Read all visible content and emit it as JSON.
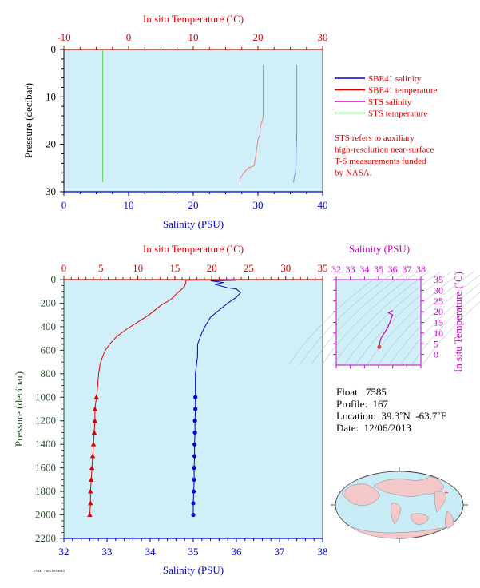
{
  "float_info": {
    "float": "Float:  7585",
    "profile": "Profile:  167",
    "location": "Location:  39.3˚N  -63.7˚E",
    "date": "Date:  12/06/2013"
  },
  "footer_code": "F5847 7585 09/06/14",
  "colors": {
    "salinity": "#0000cc",
    "temperature": "#dd0000",
    "sts_salinity": "#cc00cc",
    "sts_temperature": "#33cc33",
    "plot_bg": "#d0eff8",
    "depth_axis": "#2d4a2d"
  },
  "chart_data": [
    {
      "id": "top",
      "type": "line",
      "title": "",
      "top_axis_label": "In situ Temperature (˚C)",
      "top_axis_range": [
        -10,
        30
      ],
      "top_ticks": [
        -10,
        0,
        10,
        20,
        30
      ],
      "bottom_axis_label": "Salinity (PSU)",
      "bottom_axis_range": [
        0,
        40
      ],
      "bottom_ticks": [
        0,
        10,
        20,
        30,
        40
      ],
      "ylabel": "Pressure (decibar)",
      "ylim": [
        0,
        30
      ],
      "y_ticks": [
        0,
        10,
        20,
        30
      ],
      "legend": [
        {
          "name": "SBE41 salinity",
          "color": "#0000cc"
        },
        {
          "name": "SBE41 temperature",
          "color": "#dd0000"
        },
        {
          "name": "STS salinity",
          "color": "#cc00cc"
        },
        {
          "name": "STS temperature",
          "color": "#33cc33"
        }
      ],
      "note": [
        "STS refers to auxiliary",
        "high-resolution near-surface",
        "T-S measurements funded",
        "by NASA."
      ],
      "series": [
        {
          "name": "SBE41 salinity",
          "axis": "bottom",
          "color": "#7090e0",
          "points": [
            [
              36.0,
              3.2
            ],
            [
              36.0,
              12
            ],
            [
              36.0,
              18
            ],
            [
              35.9,
              22
            ],
            [
              35.9,
              24
            ],
            [
              35.8,
              26
            ],
            [
              35.6,
              27
            ],
            [
              35.5,
              28
            ]
          ]
        },
        {
          "name": "SBE41 temperature",
          "axis": "top",
          "color": "#f08080",
          "points": [
            [
              20.8,
              3.2
            ],
            [
              20.8,
              9
            ],
            [
              20.8,
              14
            ],
            [
              20.7,
              15
            ],
            [
              20.4,
              16
            ],
            [
              20.3,
              18
            ],
            [
              20.0,
              19
            ],
            [
              19.8,
              21
            ],
            [
              19.6,
              23
            ],
            [
              19.4,
              24.5
            ],
            [
              18.5,
              25
            ],
            [
              17.8,
              26
            ],
            [
              17.3,
              27
            ],
            [
              17.2,
              28
            ]
          ]
        },
        {
          "name": "STS temperature",
          "axis": "top",
          "color": "#66cc66",
          "points": [
            [
              -4,
              0
            ],
            [
              -4,
              28
            ]
          ]
        }
      ]
    },
    {
      "id": "profile",
      "type": "line",
      "title": "",
      "top_axis_label": "In situ Temperature (˚C)",
      "top_axis_range": [
        0,
        35
      ],
      "top_ticks": [
        0,
        5,
        10,
        15,
        20,
        25,
        30,
        35
      ],
      "bottom_axis_label": "Salinity (PSU)",
      "bottom_axis_range": [
        32,
        38
      ],
      "bottom_ticks": [
        32,
        33,
        34,
        35,
        36,
        37,
        38
      ],
      "ylabel": "Pressure (decibar)",
      "ylim": [
        0,
        2200
      ],
      "y_ticks": [
        0,
        200,
        400,
        600,
        800,
        1000,
        1200,
        1400,
        1600,
        1800,
        2000,
        2200
      ],
      "series": [
        {
          "name": "SBE41 temperature",
          "axis": "top",
          "color": "#dd0000",
          "points": [
            [
              22.5,
              0
            ],
            [
              16.5,
              5
            ],
            [
              16.5,
              25
            ],
            [
              16.3,
              60
            ],
            [
              15.8,
              90
            ],
            [
              15.2,
              120
            ],
            [
              14.8,
              150
            ],
            [
              14.2,
              180
            ],
            [
              13.3,
              210
            ],
            [
              12.5,
              250
            ],
            [
              11.5,
              300
            ],
            [
              10.0,
              360
            ],
            [
              8.5,
              420
            ],
            [
              7.2,
              480
            ],
            [
              6.3,
              540
            ],
            [
              5.6,
              600
            ],
            [
              5.2,
              660
            ],
            [
              4.9,
              720
            ],
            [
              4.7,
              800
            ],
            [
              4.6,
              880
            ],
            [
              4.5,
              950
            ],
            [
              4.4,
              1000
            ]
          ],
          "discrete": [
            [
              4.4,
              1000
            ],
            [
              4.2,
              1100
            ],
            [
              4.2,
              1200
            ],
            [
              4.1,
              1300
            ],
            [
              4.0,
              1400
            ],
            [
              3.9,
              1500
            ],
            [
              3.8,
              1600
            ],
            [
              3.7,
              1700
            ],
            [
              3.6,
              1800
            ],
            [
              3.6,
              1900
            ],
            [
              3.5,
              2000
            ]
          ]
        },
        {
          "name": "SBE41 salinity",
          "axis": "bottom",
          "color": "#0000cc",
          "points": [
            [
              36.0,
              5
            ],
            [
              35.4,
              10
            ],
            [
              35.7,
              25
            ],
            [
              35.5,
              40
            ],
            [
              35.8,
              70
            ],
            [
              36.0,
              80
            ],
            [
              36.1,
              110
            ],
            [
              36.0,
              150
            ],
            [
              35.8,
              200
            ],
            [
              35.6,
              260
            ],
            [
              35.4,
              320
            ],
            [
              35.3,
              380
            ],
            [
              35.2,
              450
            ],
            [
              35.1,
              550
            ],
            [
              35.1,
              650
            ],
            [
              35.05,
              800
            ],
            [
              35.05,
              900
            ],
            [
              35.05,
              1000
            ]
          ],
          "discrete": [
            [
              35.05,
              1000
            ],
            [
              35.05,
              1100
            ],
            [
              35.04,
              1200
            ],
            [
              35.04,
              1300
            ],
            [
              35.03,
              1400
            ],
            [
              35.03,
              1500
            ],
            [
              35.02,
              1600
            ],
            [
              35.02,
              1700
            ],
            [
              35.01,
              1800
            ],
            [
              35.0,
              1900
            ],
            [
              35.0,
              2000
            ]
          ]
        }
      ]
    },
    {
      "id": "ts",
      "type": "line",
      "title": "",
      "top_axis_label": "Salinity (PSU)",
      "top_axis_range": [
        32,
        38
      ],
      "top_ticks": [
        32,
        33,
        34,
        35,
        36,
        37,
        38
      ],
      "right_axis_label": "In situ Temperature (˚C)",
      "right_axis_range": [
        -5,
        35
      ],
      "right_ticks": [
        0,
        5,
        10,
        15,
        20,
        25,
        30,
        35
      ],
      "series": [
        {
          "name": "T-S",
          "color": "#cc00cc",
          "points": [
            [
              35.05,
              3.5
            ],
            [
              35.1,
              6
            ],
            [
              35.2,
              8
            ],
            [
              35.4,
              10
            ],
            [
              35.6,
              12
            ],
            [
              35.8,
              15
            ],
            [
              35.9,
              17
            ],
            [
              36.0,
              18.5
            ],
            [
              35.7,
              19.5
            ],
            [
              36.0,
              20.5
            ]
          ]
        }
      ]
    }
  ]
}
